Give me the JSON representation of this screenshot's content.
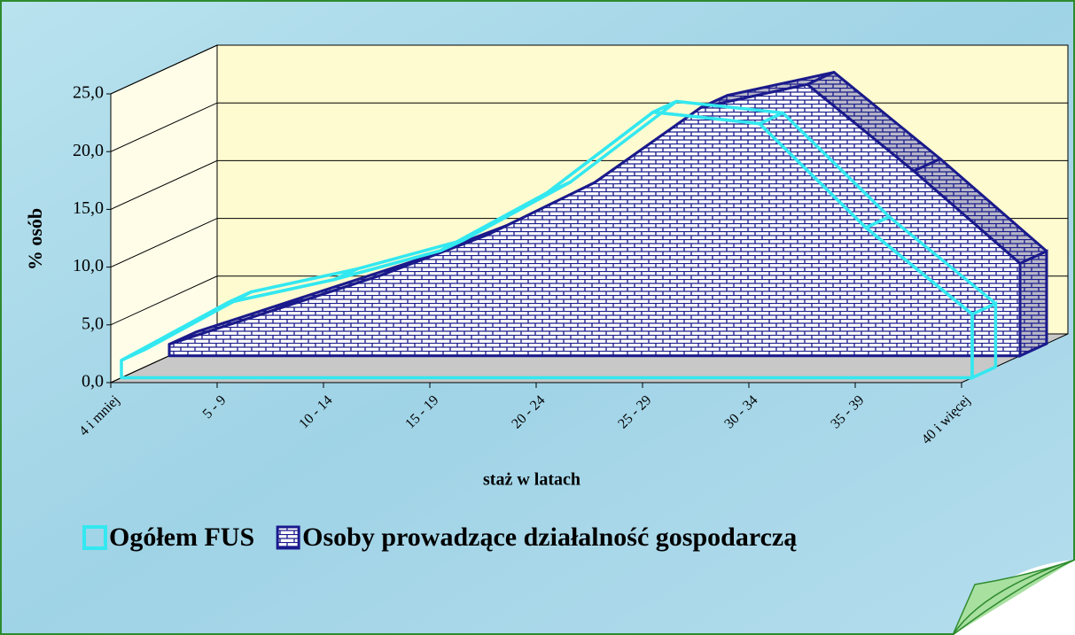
{
  "chart_data": {
    "type": "area3d",
    "categories": [
      "4 i mniej",
      "5 - 9",
      "10 - 14",
      "15 - 19",
      "20 - 24",
      "25 - 29",
      "30 - 34",
      "35 - 39",
      "40 i więcej"
    ],
    "x_label": "staż w latach",
    "y_label": "% osób",
    "ylim": [
      0,
      25
    ],
    "yticks": [
      {
        "value": 0,
        "label": "0,0"
      },
      {
        "value": 5,
        "label": "5,0"
      },
      {
        "value": 10,
        "label": "10,0"
      },
      {
        "value": 15,
        "label": "15,0"
      },
      {
        "value": 20,
        "label": "20,0"
      },
      {
        "value": 25,
        "label": "25,0"
      }
    ],
    "grid": true,
    "series": [
      {
        "name": "Ogółem FUS",
        "color": "#33e8f0",
        "values": [
          1.5,
          6.5,
          8.5,
          11,
          16,
          23,
          22,
          13,
          5.5
        ]
      },
      {
        "name": "Osoby prowadzące działalność gospodarczą",
        "color": "#1a1a8c",
        "values": [
          1,
          4,
          7,
          10.5,
          15,
          21.5,
          23.5,
          16,
          8
        ]
      }
    ]
  }
}
